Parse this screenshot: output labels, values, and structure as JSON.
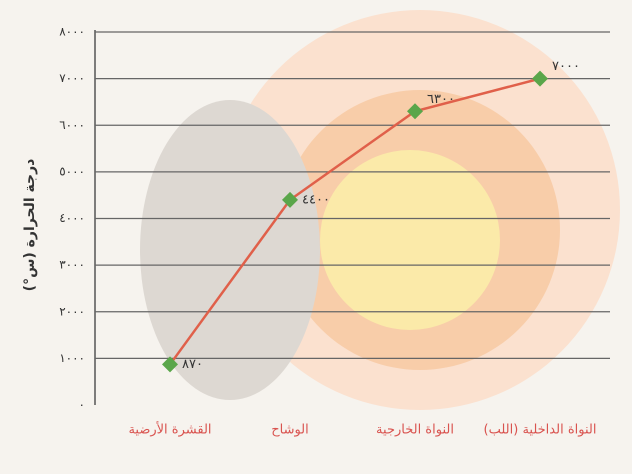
{
  "chart_data": {
    "type": "line",
    "y_label": "درجة الحرارة (س°)",
    "categories": [
      "القشرة الأرضية",
      "الوشاح",
      "النواة الخارجية",
      "النواة الداخلية (اللب)"
    ],
    "values": [
      870,
      4400,
      6300,
      7000
    ],
    "value_labels": [
      "٨٧٠",
      "٤٤٠٠",
      "٦٣٠٠",
      "٧٠٠٠"
    ],
    "color": "#e0604a",
    "marker_color": "#5aa64a",
    "ylim": [
      0,
      8000
    ],
    "yticks": [
      {
        "value": 0,
        "label": "٠"
      },
      {
        "value": 1000,
        "label": "١٠٠٠"
      },
      {
        "value": 2000,
        "label": "٢٠٠٠"
      },
      {
        "value": 3000,
        "label": "٣٠٠٠"
      },
      {
        "value": 4000,
        "label": "٤٠٠٠"
      },
      {
        "value": 5000,
        "label": "٥٠٠٠"
      },
      {
        "value": 6000,
        "label": "٦٠٠٠"
      },
      {
        "value": 7000,
        "label": "٧٠٠٠"
      },
      {
        "value": 8000,
        "label": "٨٠٠٠"
      }
    ],
    "grid": true
  }
}
